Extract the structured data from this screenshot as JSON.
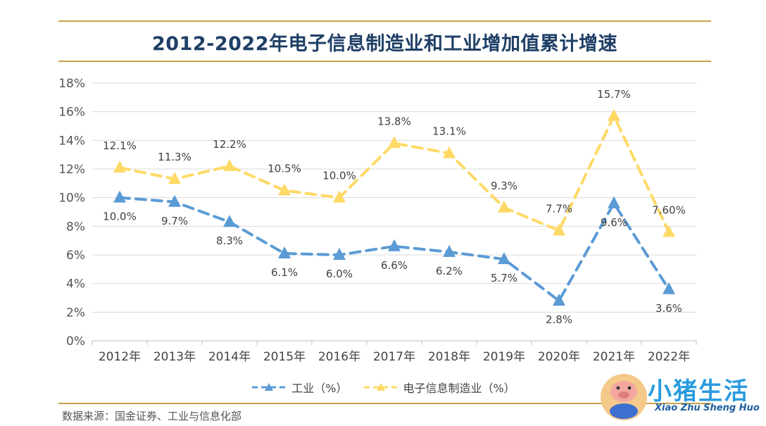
{
  "title": "2012-2022年电子信息制造业和工业增加值累计增速",
  "source": "数据来源：国金证券、工业与信息化部",
  "logo": {
    "text": "小猪生活",
    "sub": "Xiao Zhu Sheng Huo"
  },
  "colors": {
    "industry": "#5b9bd5",
    "electronics": "#ffd966",
    "grid": "#d9d9d9",
    "text": "#444444"
  },
  "chart_data": {
    "type": "line",
    "title": "2012-2022年电子信息制造业和工业增加值累计增速",
    "categories": [
      "2012年",
      "2013年",
      "2014年",
      "2015年",
      "2016年",
      "2017年",
      "2018年",
      "2019年",
      "2020年",
      "2021年",
      "2022年"
    ],
    "ylim": [
      0,
      18
    ],
    "yticks": [
      "0%",
      "2%",
      "4%",
      "6%",
      "8%",
      "10%",
      "12%",
      "14%",
      "16%",
      "18%"
    ],
    "ytick_values": [
      0,
      2,
      4,
      6,
      8,
      10,
      12,
      14,
      16,
      18
    ],
    "grid": true,
    "legend_position": "bottom",
    "series": [
      {
        "name": "工业（%）",
        "values": [
          10.0,
          9.7,
          8.3,
          6.1,
          6.0,
          6.6,
          6.2,
          5.7,
          2.8,
          9.6,
          3.6
        ],
        "labels": [
          "10.0%",
          "9.7%",
          "8.3%",
          "6.1%",
          "6.0%",
          "6.6%",
          "6.2%",
          "5.7%",
          "2.8%",
          "9.6%",
          "3.6%"
        ]
      },
      {
        "name": "电子信息制造业（%）",
        "values": [
          12.1,
          11.3,
          12.2,
          10.5,
          10.0,
          13.8,
          13.1,
          9.3,
          7.7,
          15.7,
          7.6
        ],
        "labels": [
          "12.1%",
          "11.3%",
          "12.2%",
          "10.5%",
          "10.0%",
          "13.8%",
          "13.1%",
          "9.3%",
          "7.7%",
          "15.7%",
          "7.60%"
        ]
      }
    ]
  }
}
